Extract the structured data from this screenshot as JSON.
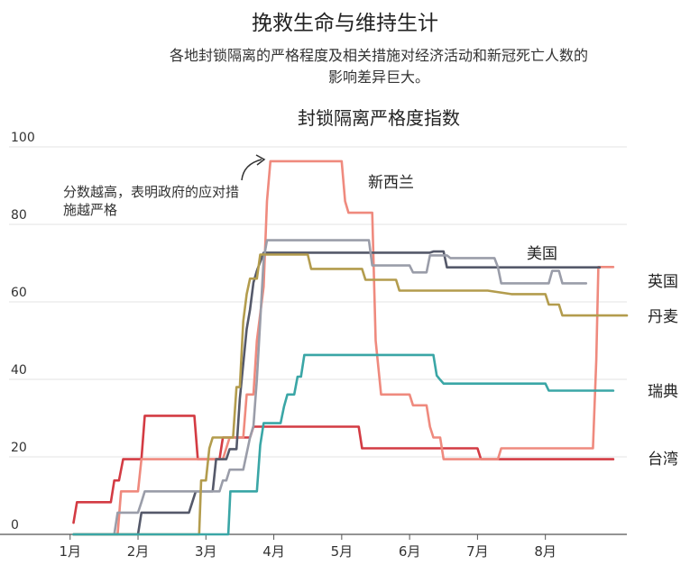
{
  "header": {
    "title": "挽救生命与维持生计",
    "subtitle_line1": "各地封锁隔离的严格程度及相关措施对经济活动和新冠死亡人数的",
    "subtitle_line2": "影响差异巨大。"
  },
  "chart_data": {
    "type": "line",
    "title": "封锁隔离严格度指数",
    "xlabel": "",
    "ylabel": "",
    "ylim": [
      0,
      100
    ],
    "yticks": [
      0,
      20,
      40,
      60,
      80,
      100
    ],
    "x_unit": "month (1 = 1月1日)",
    "xlim": [
      0.1,
      9.2
    ],
    "xticks": [
      {
        "value": 1,
        "label": "1月"
      },
      {
        "value": 2,
        "label": "2月"
      },
      {
        "value": 3,
        "label": "3月"
      },
      {
        "value": 4,
        "label": "4月"
      },
      {
        "value": 5,
        "label": "5月"
      },
      {
        "value": 6,
        "label": "6月"
      },
      {
        "value": 7,
        "label": "7月"
      },
      {
        "value": 8,
        "label": "8月"
      }
    ],
    "annotation": {
      "line1": "分数越高，表明政府的应对措",
      "line2": "施越严格"
    },
    "grid": true,
    "series": [
      {
        "name": "台湾",
        "color": "#d33b43",
        "points": [
          [
            1.05,
            3
          ],
          [
            1.1,
            8.3
          ],
          [
            1.6,
            8.3
          ],
          [
            1.65,
            13.9
          ],
          [
            1.72,
            13.9
          ],
          [
            1.78,
            19.4
          ],
          [
            2.05,
            19.4
          ],
          [
            2.1,
            30.6
          ],
          [
            2.83,
            30.6
          ],
          [
            2.88,
            19.4
          ],
          [
            3.2,
            19.4
          ],
          [
            3.25,
            25
          ],
          [
            3.65,
            25
          ],
          [
            3.7,
            27.8
          ],
          [
            5.25,
            27.8
          ],
          [
            5.3,
            22.2
          ],
          [
            6.25,
            22.2
          ],
          [
            6.3,
            22.2
          ],
          [
            7,
            22.2
          ],
          [
            7.05,
            19.4
          ],
          [
            9.0,
            19.4
          ]
        ]
      },
      {
        "name": "新西兰",
        "color": "#ef8a7e",
        "points": [
          [
            1.05,
            0
          ],
          [
            1.7,
            0
          ],
          [
            1.75,
            11.1
          ],
          [
            2.0,
            11.1
          ],
          [
            2.05,
            19.4
          ],
          [
            3.0,
            19.4
          ],
          [
            3.25,
            19.4
          ],
          [
            3.35,
            25
          ],
          [
            3.55,
            25
          ],
          [
            3.6,
            36.1
          ],
          [
            3.7,
            36.1
          ],
          [
            3.75,
            50
          ],
          [
            3.85,
            63.9
          ],
          [
            3.9,
            86
          ],
          [
            3.95,
            96.3
          ],
          [
            5.0,
            96.3
          ],
          [
            5.05,
            86
          ],
          [
            5.1,
            83
          ],
          [
            5.45,
            83
          ],
          [
            5.5,
            50
          ],
          [
            5.58,
            36.1
          ],
          [
            6.0,
            36.1
          ],
          [
            6.05,
            33.3
          ],
          [
            6.25,
            33.3
          ],
          [
            6.3,
            27.8
          ],
          [
            6.35,
            25
          ],
          [
            6.45,
            25
          ],
          [
            6.5,
            19.4
          ],
          [
            7.0,
            19.4
          ],
          [
            7.1,
            19.4
          ],
          [
            7.3,
            19.4
          ],
          [
            7.35,
            22.2
          ],
          [
            8.7,
            22.2
          ],
          [
            8.75,
            45
          ],
          [
            8.78,
            69
          ],
          [
            9.0,
            69
          ]
        ]
      },
      {
        "name": "美国",
        "color": "#55596a",
        "points": [
          [
            1.05,
            0
          ],
          [
            2.0,
            0
          ],
          [
            2.05,
            5.6
          ],
          [
            2.75,
            5.6
          ],
          [
            2.8,
            8.3
          ],
          [
            2.85,
            11.1
          ],
          [
            3.1,
            11.1
          ],
          [
            3.15,
            19.4
          ],
          [
            3.3,
            19.4
          ],
          [
            3.35,
            22
          ],
          [
            3.45,
            22
          ],
          [
            3.5,
            35
          ],
          [
            3.55,
            44
          ],
          [
            3.6,
            53
          ],
          [
            3.65,
            58
          ],
          [
            3.7,
            65
          ],
          [
            3.75,
            68
          ],
          [
            3.85,
            72.7
          ],
          [
            5.5,
            72.7
          ],
          [
            6.0,
            72.7
          ],
          [
            6.3,
            72.7
          ],
          [
            6.35,
            73
          ],
          [
            6.5,
            73
          ],
          [
            6.55,
            68.9
          ],
          [
            8.5,
            68.9
          ],
          [
            8.7,
            68.9
          ],
          [
            8.8,
            68.9
          ]
        ]
      },
      {
        "name": "英国",
        "color": "#9a9da9",
        "points": [
          [
            1.05,
            0
          ],
          [
            1.65,
            0
          ],
          [
            1.7,
            5.6
          ],
          [
            2.0,
            5.6
          ],
          [
            2.05,
            8.3
          ],
          [
            2.1,
            11.1
          ],
          [
            3.2,
            11.1
          ],
          [
            3.25,
            13.9
          ],
          [
            3.3,
            13.9
          ],
          [
            3.35,
            16.7
          ],
          [
            3.55,
            16.7
          ],
          [
            3.65,
            25
          ],
          [
            3.7,
            28
          ],
          [
            3.75,
            40
          ],
          [
            3.8,
            55
          ],
          [
            3.85,
            71
          ],
          [
            3.9,
            75.9
          ],
          [
            5.0,
            75.9
          ],
          [
            5.4,
            75.9
          ],
          [
            5.45,
            69.4
          ],
          [
            6.0,
            69.4
          ],
          [
            6.05,
            67.6
          ],
          [
            6.25,
            67.6
          ],
          [
            6.3,
            72
          ],
          [
            6.55,
            72
          ],
          [
            6.6,
            71.3
          ],
          [
            7.25,
            71.3
          ],
          [
            7.3,
            69
          ],
          [
            7.35,
            64.8
          ],
          [
            8.0,
            64.8
          ],
          [
            8.05,
            64.8
          ],
          [
            8.1,
            68
          ],
          [
            8.2,
            68
          ],
          [
            8.25,
            64.8
          ],
          [
            8.6,
            64.8
          ]
        ]
      },
      {
        "name": "丹麦",
        "color": "#b39c4d",
        "points": [
          [
            1.05,
            0
          ],
          [
            2.9,
            0
          ],
          [
            2.93,
            13.9
          ],
          [
            3.0,
            13.9
          ],
          [
            3.05,
            22.2
          ],
          [
            3.1,
            25
          ],
          [
            3.4,
            25
          ],
          [
            3.45,
            38
          ],
          [
            3.5,
            38
          ],
          [
            3.55,
            55
          ],
          [
            3.6,
            62
          ],
          [
            3.65,
            66
          ],
          [
            3.75,
            66
          ],
          [
            3.8,
            72.2
          ],
          [
            4.5,
            72.2
          ],
          [
            4.55,
            68.5
          ],
          [
            5.3,
            68.5
          ],
          [
            5.35,
            65.7
          ],
          [
            5.8,
            65.7
          ],
          [
            5.85,
            62.9
          ],
          [
            7.15,
            62.9
          ],
          [
            7.5,
            62
          ],
          [
            8.0,
            62
          ],
          [
            8.05,
            59.3
          ],
          [
            8.2,
            59.3
          ],
          [
            8.25,
            56.5
          ],
          [
            9.2,
            56.5
          ]
        ]
      },
      {
        "name": "瑞典",
        "color": "#3aa6a6",
        "points": [
          [
            1.05,
            0
          ],
          [
            3.33,
            0
          ],
          [
            3.36,
            11.1
          ],
          [
            3.75,
            11.1
          ],
          [
            3.8,
            23
          ],
          [
            3.85,
            28.7
          ],
          [
            4.1,
            28.7
          ],
          [
            4.15,
            33
          ],
          [
            4.2,
            36.1
          ],
          [
            4.3,
            36.1
          ],
          [
            4.35,
            40.7
          ],
          [
            4.4,
            40.7
          ],
          [
            4.45,
            46.3
          ],
          [
            6.35,
            46.3
          ],
          [
            6.4,
            41
          ],
          [
            6.45,
            39.9
          ],
          [
            6.5,
            38.9
          ],
          [
            8.0,
            38.9
          ],
          [
            8.05,
            37.1
          ],
          [
            9.0,
            37.1
          ]
        ]
      }
    ]
  },
  "legend_labels": {
    "nz": "新西兰",
    "us": "美国",
    "uk": "英国",
    "dk": "丹麦",
    "se": "瑞典",
    "tw": "台湾"
  }
}
